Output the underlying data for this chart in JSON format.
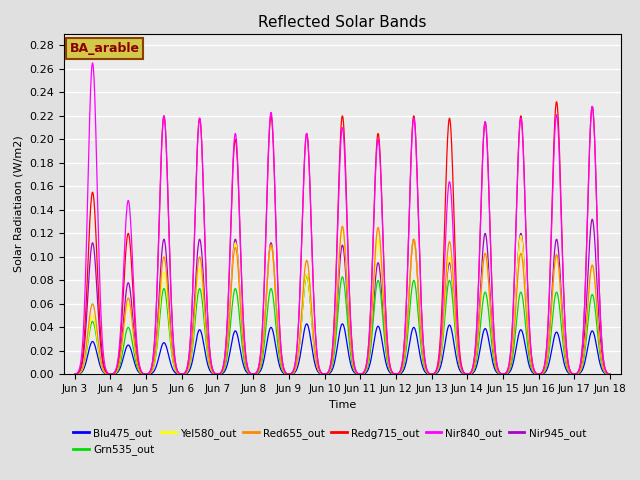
{
  "title": "Reflected Solar Bands",
  "xlabel": "Time",
  "ylabel": "Solar Radiatiaon (W/m2)",
  "annotation": "BA_arable",
  "ylim": [
    0,
    0.29
  ],
  "yticks": [
    0.0,
    0.02,
    0.04,
    0.06,
    0.08,
    0.1,
    0.12,
    0.14,
    0.16,
    0.18,
    0.2,
    0.22,
    0.24,
    0.26,
    0.28
  ],
  "xtick_labels": [
    "Jun 3",
    "Jun 4",
    "Jun 5",
    "Jun 6",
    "Jun 7",
    "Jun 8",
    "Jun 9",
    "Jun 10",
    "Jun 11",
    "Jun 12",
    "Jun 13",
    "Jun 14",
    "Jun 15",
    "Jun 16",
    "Jun 17",
    "Jun 18"
  ],
  "series_colors": {
    "Blu475_out": "#0000ff",
    "Grn535_out": "#00dd00",
    "Yel580_out": "#ffff00",
    "Red655_out": "#ff8800",
    "Redg715_out": "#ff0000",
    "Nir840_out": "#ff00ff",
    "Nir945_out": "#aa00cc"
  },
  "legend_order": [
    "Blu475_out",
    "Grn535_out",
    "Yel580_out",
    "Red655_out",
    "Redg715_out",
    "Nir840_out",
    "Nir945_out"
  ],
  "plot_order": [
    "Nir945_out",
    "Blu475_out",
    "Grn535_out",
    "Yel580_out",
    "Red655_out",
    "Redg715_out",
    "Nir840_out"
  ],
  "peak_data": {
    "Blu475_out": [
      0.028,
      0.025,
      0.027,
      0.038,
      0.037,
      0.04,
      0.043,
      0.043,
      0.041,
      0.04,
      0.042,
      0.039,
      0.038,
      0.036,
      0.037
    ],
    "Grn535_out": [
      0.045,
      0.04,
      0.073,
      0.073,
      0.073,
      0.073,
      0.084,
      0.083,
      0.08,
      0.08,
      0.08,
      0.07,
      0.07,
      0.07,
      0.068
    ],
    "Yel580_out": [
      0.05,
      0.06,
      0.087,
      0.09,
      0.112,
      0.11,
      0.085,
      0.125,
      0.115,
      0.115,
      0.1,
      0.103,
      0.118,
      0.1,
      0.093
    ],
    "Red655_out": [
      0.06,
      0.065,
      0.1,
      0.1,
      0.108,
      0.11,
      0.097,
      0.126,
      0.125,
      0.115,
      0.113,
      0.103,
      0.103,
      0.102,
      0.093
    ],
    "Redg715_out": [
      0.155,
      0.12,
      0.22,
      0.218,
      0.2,
      0.22,
      0.205,
      0.22,
      0.205,
      0.22,
      0.218,
      0.215,
      0.22,
      0.232,
      0.228
    ],
    "Nir840_out": [
      0.265,
      0.148,
      0.22,
      0.218,
      0.205,
      0.223,
      0.205,
      0.21,
      0.2,
      0.218,
      0.164,
      0.215,
      0.218,
      0.221,
      0.228
    ],
    "Nir945_out": [
      0.112,
      0.078,
      0.115,
      0.115,
      0.115,
      0.112,
      0.085,
      0.11,
      0.095,
      0.115,
      0.095,
      0.12,
      0.12,
      0.115,
      0.132
    ]
  },
  "figsize": [
    6.4,
    4.8
  ],
  "dpi": 100,
  "bg_color": "#e0e0e0",
  "plot_bg": "#ebebeb"
}
